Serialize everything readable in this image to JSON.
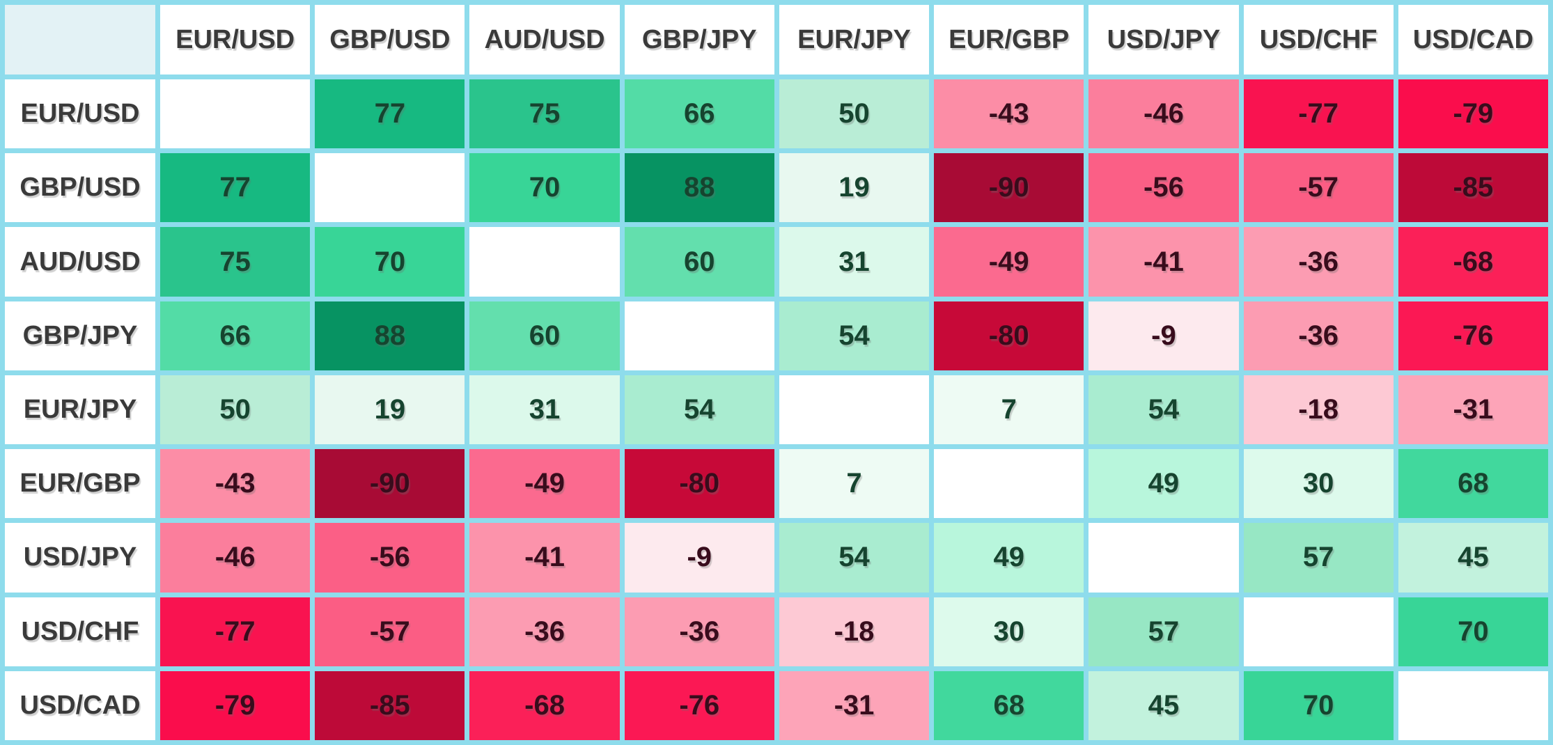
{
  "table": {
    "corner_label": "",
    "pairs": [
      "EUR/USD",
      "GBP/USD",
      "AUD/USD",
      "GBP/JPY",
      "EUR/JPY",
      "EUR/GBP",
      "USD/JPY",
      "USD/CHF",
      "USD/CAD"
    ]
  },
  "chart_data": {
    "type": "heatmap",
    "x_categories": [
      "EUR/USD",
      "GBP/USD",
      "AUD/USD",
      "GBP/JPY",
      "EUR/JPY",
      "EUR/GBP",
      "USD/JPY",
      "USD/CHF",
      "USD/CAD"
    ],
    "y_categories": [
      "EUR/USD",
      "GBP/USD",
      "AUD/USD",
      "GBP/JPY",
      "EUR/JPY",
      "EUR/GBP",
      "USD/JPY",
      "USD/CHF",
      "USD/CAD"
    ],
    "matrix": [
      [
        null,
        77,
        75,
        66,
        50,
        -43,
        -46,
        -77,
        -79
      ],
      [
        77,
        null,
        70,
        88,
        19,
        -90,
        -56,
        -57,
        -85
      ],
      [
        75,
        70,
        null,
        60,
        31,
        -49,
        -41,
        -36,
        -68
      ],
      [
        66,
        88,
        60,
        null,
        54,
        -80,
        -9,
        -36,
        -76
      ],
      [
        50,
        19,
        31,
        54,
        null,
        7,
        54,
        -18,
        -31
      ],
      [
        -43,
        -90,
        -49,
        -80,
        7,
        null,
        49,
        30,
        68
      ],
      [
        -46,
        -56,
        -41,
        -9,
        54,
        49,
        null,
        57,
        45
      ],
      [
        -77,
        -57,
        -36,
        -36,
        -18,
        30,
        57,
        null,
        70
      ],
      [
        -79,
        -85,
        -68,
        -76,
        -31,
        68,
        45,
        70,
        null
      ]
    ],
    "value_range": [
      -100,
      100
    ],
    "legend": "none",
    "diagonal": "blank"
  },
  "colors": {
    "grid_border": "#8edcec",
    "corner_bg": "#e3f2f5",
    "header_bg": "#ffffff",
    "diagonal_bg": "#ffffff",
    "label_text": "#3a3a3a",
    "positive_value_text": "#16442f",
    "negative_value_text": "#380c1c",
    "value_colors": {
      "88": "#079362",
      "77": "#17b981",
      "75": "#2ac48c",
      "70": "#38d597",
      "68": "#41d89d",
      "66": "#53dca6",
      "60": "#63dfad",
      "57": "#97e7c4",
      "54": "#a9ecd0",
      "50": "#b9edd6",
      "49": "#b8f6dc",
      "45": "#c2f2dd",
      "31": "#dcf9eb",
      "30": "#ddfaec",
      "19": "#e8f8f0",
      "7": "#eefbf4",
      "-9": "#fdeaee",
      "-18": "#fdc9d4",
      "-31": "#fda4b8",
      "-36": "#fc9cb2",
      "-41": "#fc93ab",
      "-43": "#fc8da6",
      "-46": "#fb7e9c",
      "-49": "#fb6a8f",
      "-56": "#fb5f86",
      "-57": "#fb5d84",
      "-68": "#fb2058",
      "-76": "#fb1854",
      "-77": "#f91350",
      "-79": "#fa0d4c",
      "-80": "#c70938",
      "-85": "#bd0a38",
      "-90": "#a80b35"
    }
  }
}
